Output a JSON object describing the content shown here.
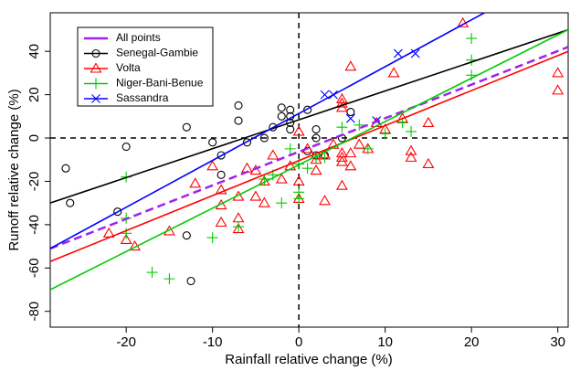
{
  "chart_data": {
    "type": "scatter",
    "x_label": "Rainfall relative change (%)",
    "y_label": "Runoff relative change (%)",
    "xlim": [
      -28.8,
      31.2
    ],
    "ylim": [
      -87.3,
      57.8
    ],
    "xticks": [
      -20,
      -10,
      0,
      10,
      20,
      30
    ],
    "yticks": [
      -80,
      -60,
      -40,
      -20,
      0,
      20,
      40
    ],
    "vline": 0,
    "hline": 0,
    "legend": "top-left",
    "series": [
      {
        "name": "All points",
        "color": "#a020f0",
        "dashed": true,
        "fit": {
          "x": [
            -28.8,
            31.2
          ],
          "values": [
            -51,
            42
          ]
        }
      },
      {
        "name": "Senegal-Gambie",
        "color": "#000000",
        "marker": "circle",
        "x": [
          -27,
          -26.5,
          -20,
          -21,
          -13,
          -13,
          -12.5,
          -10,
          -9,
          -9,
          -7,
          -7,
          -6,
          -4,
          -3,
          -2,
          -2,
          -1,
          -1,
          -1,
          -1,
          1,
          1,
          2,
          2,
          2,
          3,
          5,
          6
        ],
        "values": [
          -14,
          -30,
          -4,
          -34,
          5,
          -45,
          -66,
          -2,
          -8,
          -17,
          15,
          8,
          -2,
          0,
          5,
          14,
          10,
          13,
          10,
          7,
          4,
          13,
          -6,
          -8,
          4,
          0,
          -8,
          0,
          12
        ],
        "fit": {
          "x": [
            -28.8,
            31.2
          ],
          "values": [
            -30,
            50
          ]
        }
      },
      {
        "name": "Volta",
        "color": "#ff0000",
        "marker": "triangle",
        "x": [
          -22,
          -20,
          -19,
          -15,
          -12,
          -10,
          -9,
          -9,
          -9,
          -7,
          -7,
          -7,
          -6,
          -5,
          -5,
          -4,
          -4,
          -3,
          -2,
          -1,
          0,
          0,
          0,
          1,
          2,
          2,
          3,
          3,
          4,
          5,
          5,
          5,
          5,
          5,
          5,
          5,
          6,
          6,
          6,
          7,
          8,
          9,
          10,
          11,
          12,
          13,
          13,
          15,
          15,
          19,
          30,
          30
        ],
        "values": [
          -44,
          -47,
          -50,
          -43,
          -21,
          -13,
          -24,
          -31,
          -39,
          -27,
          -37,
          -42,
          -14,
          -15,
          -27,
          -20,
          -30,
          -8,
          -19,
          -13,
          3,
          -20,
          -28,
          -5,
          -10,
          -15,
          -29,
          -8,
          -3,
          -7,
          -9,
          -11,
          -22,
          18,
          16,
          14,
          -13,
          -7,
          33,
          -3,
          -5,
          7,
          4,
          30,
          9,
          -6,
          -9,
          7,
          -12,
          53,
          30,
          22
        ],
        "fit": {
          "x": [
            -28.8,
            31.2
          ],
          "values": [
            -57,
            40
          ]
        }
      },
      {
        "name": "Niger-Bani-Benue",
        "color": "#00cc00",
        "marker": "plus",
        "x": [
          -20,
          -20,
          -20,
          -17,
          -15,
          -10,
          -7,
          -4,
          -3,
          -2,
          -1,
          0,
          0,
          0,
          1,
          2,
          3,
          5,
          7,
          8,
          10,
          12,
          13,
          20,
          20,
          20
        ],
        "values": [
          -18,
          -44,
          -37,
          -62,
          -65,
          -46,
          -41,
          -19,
          -17,
          -30,
          -5,
          -12,
          -25,
          -28,
          -14,
          -9,
          -9,
          5,
          6,
          -5,
          2,
          7,
          3,
          46,
          29,
          36
        ],
        "fit": {
          "x": [
            -28.8,
            31.2
          ],
          "values": [
            -70,
            50
          ]
        }
      },
      {
        "name": "Sassandra",
        "color": "#0000ff",
        "marker": "x",
        "x": [
          3,
          4,
          6,
          9,
          11.5,
          13.5
        ],
        "values": [
          20,
          20,
          9,
          8,
          39,
          39
        ],
        "fit": {
          "x": [
            -28.8,
            21.5
          ],
          "values": [
            -51,
            57.8
          ]
        }
      }
    ]
  }
}
